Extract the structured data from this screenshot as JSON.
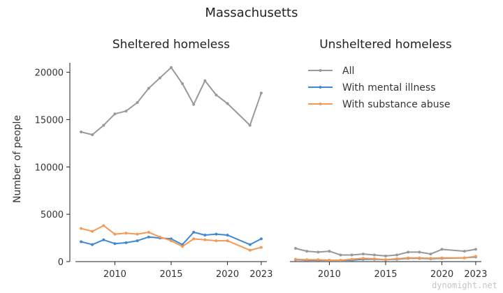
{
  "chart_data": [
    {
      "type": "line",
      "title": "Massachusetts",
      "subtitle": "Sheltered homeless",
      "xlabel": "",
      "ylabel": "Number of people",
      "xlim": [
        2006.5,
        2023.5
      ],
      "ylim": [
        0,
        21000
      ],
      "x_ticks": [
        "2010",
        "2015",
        "2020",
        "2023"
      ],
      "y_ticks": [
        "0",
        "5000",
        "10000",
        "15000",
        "20000"
      ],
      "grid": false,
      "series": [
        {
          "name": "All",
          "color": "#999999",
          "x": [
            2007,
            2008,
            2009,
            2010,
            2011,
            2012,
            2013,
            2014,
            2015,
            2016,
            2017,
            2018,
            2019,
            2020,
            2022,
            2023
          ],
          "y": [
            13700,
            13400,
            14400,
            15600,
            15900,
            16800,
            18300,
            19400,
            20500,
            18800,
            16600,
            19100,
            17600,
            16700,
            14400,
            17800
          ]
        },
        {
          "name": "With mental illness",
          "color": "#3f88d8",
          "x": [
            2007,
            2008,
            2009,
            2010,
            2011,
            2012,
            2013,
            2014,
            2015,
            2016,
            2017,
            2018,
            2019,
            2020,
            2022,
            2023
          ],
          "y": [
            2100,
            1800,
            2300,
            1900,
            2000,
            2200,
            2600,
            2500,
            2400,
            1800,
            3100,
            2800,
            2900,
            2800,
            1800,
            2400
          ]
        },
        {
          "name": "With substance abuse",
          "color": "#f59a54",
          "x": [
            2007,
            2008,
            2009,
            2010,
            2011,
            2012,
            2013,
            2014,
            2015,
            2016,
            2017,
            2018,
            2019,
            2020,
            2022,
            2023
          ],
          "y": [
            3500,
            3200,
            3800,
            2900,
            3000,
            2900,
            3100,
            2600,
            2200,
            1600,
            2400,
            2300,
            2200,
            2200,
            1200,
            1500
          ]
        }
      ]
    },
    {
      "type": "line",
      "subtitle": "Unsheltered homeless",
      "xlabel": "",
      "ylabel": "",
      "xlim": [
        2006.5,
        2023.5
      ],
      "ylim": [
        0,
        21000
      ],
      "x_ticks": [
        "2010",
        "2015",
        "2020",
        "2023"
      ],
      "grid": false,
      "legend": "top-left",
      "series": [
        {
          "name": "All",
          "color": "#999999",
          "x": [
            2007,
            2008,
            2009,
            2010,
            2011,
            2012,
            2013,
            2014,
            2015,
            2016,
            2017,
            2018,
            2019,
            2020,
            2022,
            2023
          ],
          "y": [
            1400,
            1100,
            1000,
            1100,
            700,
            700,
            800,
            700,
            600,
            700,
            1000,
            1000,
            800,
            1300,
            1100,
            1300
          ]
        },
        {
          "name": "With mental illness",
          "color": "#3f88d8",
          "x": [
            2007,
            2008,
            2009,
            2010,
            2011,
            2012,
            2013,
            2014,
            2015,
            2016,
            2017,
            2018,
            2019,
            2020,
            2022,
            2023
          ],
          "y": [
            200,
            150,
            150,
            150,
            150,
            150,
            250,
            250,
            200,
            250,
            350,
            350,
            300,
            350,
            400,
            500
          ]
        },
        {
          "name": "With substance abuse",
          "color": "#f59a54",
          "x": [
            2007,
            2008,
            2009,
            2010,
            2011,
            2012,
            2013,
            2014,
            2015,
            2016,
            2017,
            2018,
            2019,
            2020,
            2022,
            2023
          ],
          "y": [
            250,
            200,
            200,
            150,
            150,
            250,
            350,
            300,
            200,
            300,
            400,
            400,
            350,
            400,
            400,
            550
          ]
        }
      ]
    }
  ],
  "watermark": "dynomight.net"
}
